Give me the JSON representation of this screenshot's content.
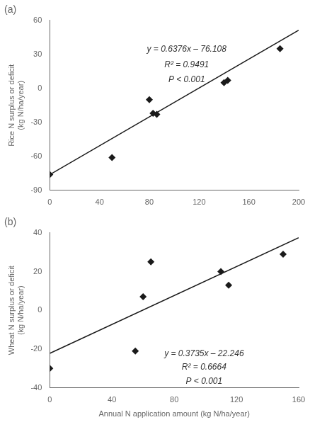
{
  "chart_data": [
    {
      "type": "scatter",
      "title": "(a)",
      "ylabel": "Rice N surplus or deficit\n(kg N/ha/year)",
      "annotations": [
        "y = 0.6376x – 76.108",
        "R² = 0.9491",
        "P < 0.001"
      ],
      "series": [
        {
          "type": "line",
          "color": "#1a1a1a",
          "line_style": "solid",
          "x": [
            0,
            200
          ],
          "values": [
            -76.108,
            51.412
          ]
        },
        {
          "type": "scatter",
          "color": "#1a1a1a",
          "marker": "diamond",
          "x": [
            0,
            50,
            80,
            83,
            86,
            140,
            143,
            185
          ],
          "values": [
            -76,
            -61,
            -10,
            -22,
            -23,
            5,
            7,
            35
          ]
        }
      ],
      "xlim": [
        0,
        200
      ],
      "xticks": [
        0,
        40,
        80,
        120,
        160,
        200
      ],
      "ylim": [
        -90,
        60
      ],
      "yticks": [
        -90,
        -60,
        -30,
        0,
        30,
        60
      ],
      "grid": false
    },
    {
      "type": "scatter",
      "title": "(b)",
      "ylabel": "Wheat N surplus or deficit\n(kg N/ha/year)",
      "xlabel": "Annual N application amount (kg N/ha/year)",
      "annotations": [
        "y = 0.3735x – 22.246",
        "R² = 0.6664",
        "P < 0.001"
      ],
      "series": [
        {
          "type": "line",
          "color": "#1a1a1a",
          "line_style": "solid",
          "x": [
            0,
            160
          ],
          "values": [
            -22.246,
            37.514
          ]
        },
        {
          "type": "scatter",
          "color": "#1a1a1a",
          "marker": "diamond",
          "x": [
            0,
            55,
            60,
            65,
            110,
            115,
            150
          ],
          "values": [
            -30,
            -21,
            7,
            25,
            20,
            13,
            29
          ]
        }
      ],
      "xlim": [
        0,
        160
      ],
      "xticks": [
        0,
        40,
        80,
        120,
        160
      ],
      "ylim": [
        -40,
        40
      ],
      "yticks": [
        -40,
        -20,
        0,
        20,
        40
      ],
      "grid": false
    }
  ]
}
